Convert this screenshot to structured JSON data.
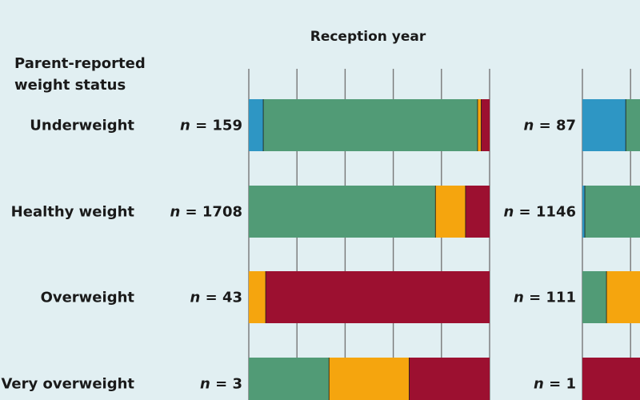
{
  "chart_data": {
    "type": "bar",
    "orientation": "horizontal",
    "stacked": true,
    "normalized_percent": true,
    "row_header": [
      "Parent-reported",
      "weight status"
    ],
    "categories": [
      "Underweight",
      "Healthy weight",
      "Overweight",
      "Very overweight"
    ],
    "series_colors": [
      "#2e96c4",
      "#519b76",
      "#f5a50e",
      "#9c1030"
    ],
    "xlim": [
      0,
      100
    ],
    "grid": true,
    "panels": [
      {
        "title": "Reception year",
        "n_labels": [
          "n = 159",
          "n = 1708",
          "n = 43",
          "n = 3"
        ],
        "series": [
          {
            "values": [
              6,
              0,
              0,
              0
            ]
          },
          {
            "values": [
              89,
              77.5,
              0,
              33.3
            ]
          },
          {
            "values": [
              1.5,
              12.5,
              7,
              33.3
            ]
          },
          {
            "values": [
              3.5,
              10,
              93,
              33.4
            ]
          }
        ]
      },
      {
        "title": "",
        "n_labels": [
          "n = 87",
          "n = 1146",
          "n = 111",
          "n = 1"
        ],
        "series": [
          {
            "values": [
              18,
              1,
              0,
              0
            ]
          },
          {
            "values": [
              82,
              99,
              10,
              0
            ]
          },
          {
            "values": [
              0,
              0,
              90,
              0
            ]
          },
          {
            "values": [
              0,
              0,
              0,
              100
            ]
          }
        ]
      }
    ]
  }
}
